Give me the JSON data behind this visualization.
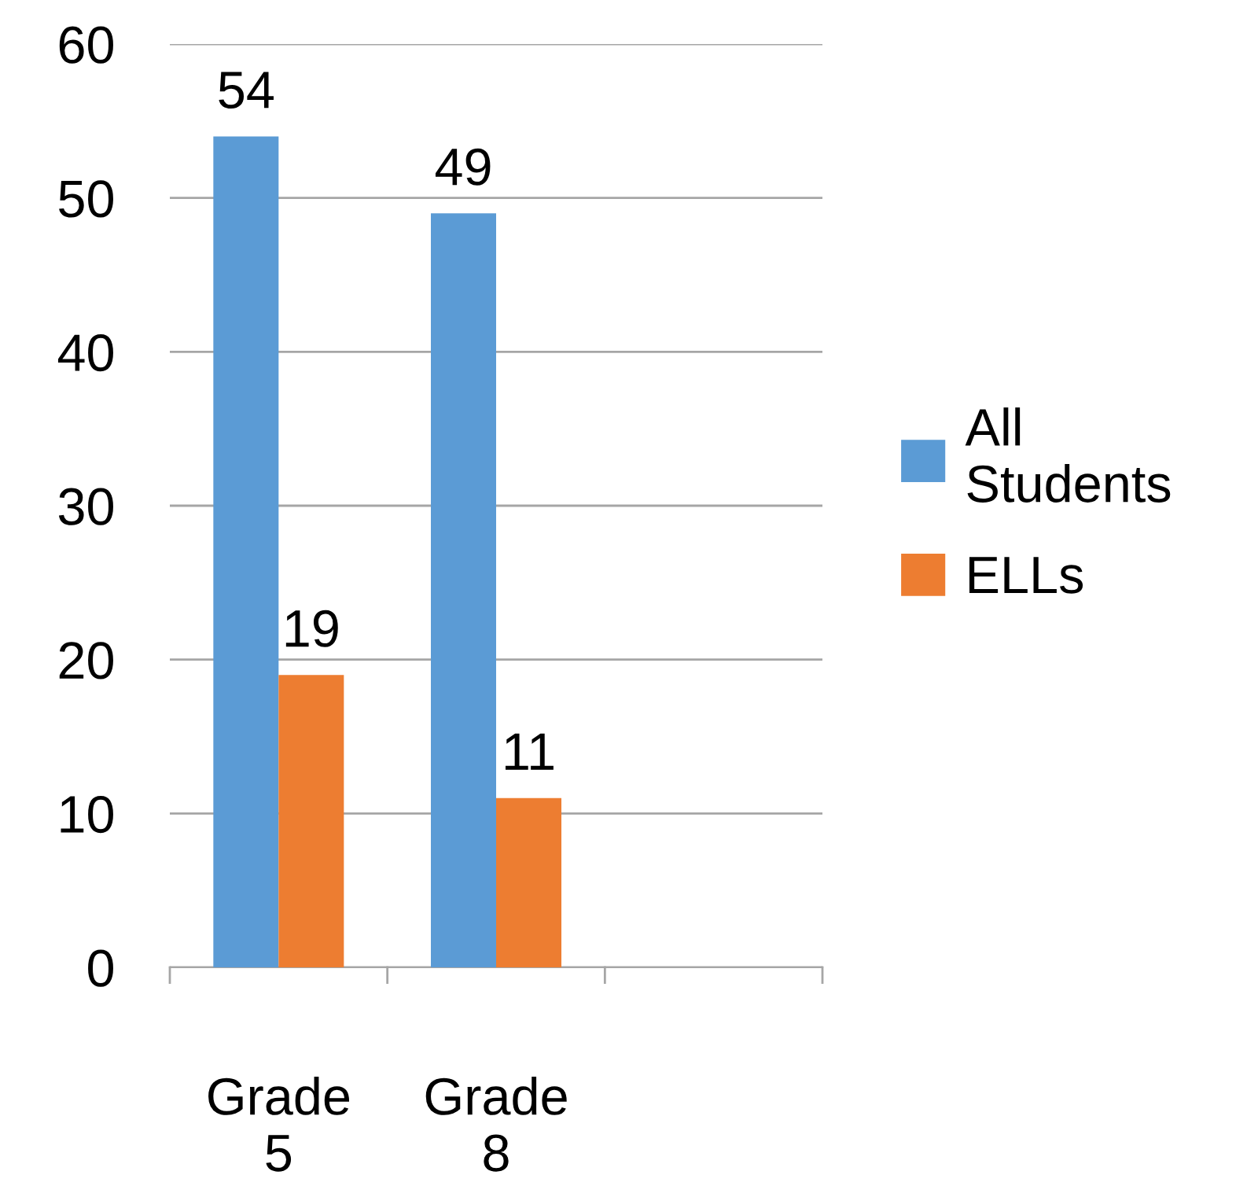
{
  "chart_data": {
    "type": "bar",
    "categories": [
      "Grade 5",
      "Grade 8",
      null
    ],
    "series": [
      {
        "name": "All Students",
        "color": "#5b9bd5",
        "values": [
          54,
          49,
          null
        ]
      },
      {
        "name": "ELLs",
        "color": "#ed7d31",
        "values": [
          19,
          11,
          null
        ]
      }
    ],
    "ylim": [
      0,
      60
    ],
    "yticks": [
      0,
      10,
      20,
      30,
      40,
      50,
      60
    ],
    "grid": "y",
    "legend": "right",
    "data_labels": true
  }
}
